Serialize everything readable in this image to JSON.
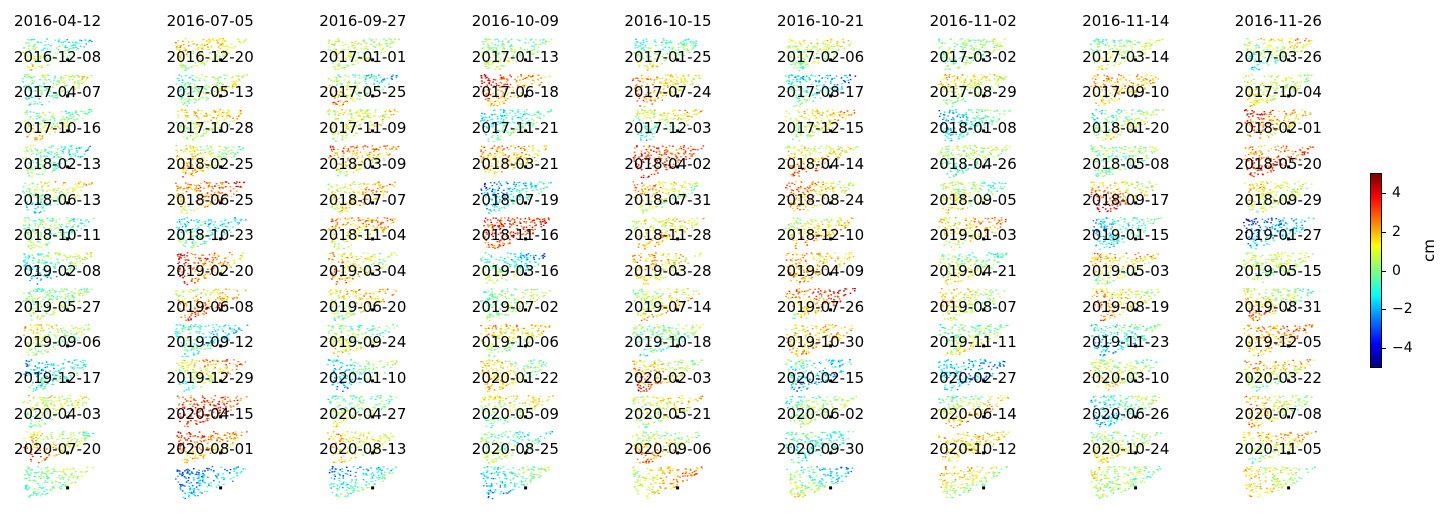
{
  "chart_data": {
    "type": "heatmap",
    "grid_columns": 9,
    "grid_rows": 13,
    "colormap": "jet",
    "colorbar": {
      "label": "cm",
      "range": [
        -5,
        5
      ],
      "ticks": [
        "4",
        "2",
        "0",
        "−2",
        "−4"
      ],
      "tick_values": [
        4,
        2,
        0,
        -2,
        -4
      ]
    },
    "reference_point_color": "#000000",
    "panels": [
      {
        "date": "2016-04-12",
        "mean": 0.0
      },
      {
        "date": "2016-07-05",
        "mean": 0.8
      },
      {
        "date": "2016-09-27",
        "mean": 0.5
      },
      {
        "date": "2016-10-09",
        "mean": 0.3
      },
      {
        "date": "2016-10-15",
        "mean": 0.4
      },
      {
        "date": "2016-10-21",
        "mean": 0.6
      },
      {
        "date": "2016-11-02",
        "mean": 0.2
      },
      {
        "date": "2016-11-14",
        "mean": 0.7
      },
      {
        "date": "2016-11-26",
        "mean": 0.3
      },
      {
        "date": "2016-12-08",
        "mean": 0.1
      },
      {
        "date": "2016-12-20",
        "mean": 0.6
      },
      {
        "date": "2017-01-01",
        "mean": 0.2
      },
      {
        "date": "2017-01-13",
        "mean": 2.0
      },
      {
        "date": "2017-01-25",
        "mean": 1.5
      },
      {
        "date": "2017-02-06",
        "mean": -1.2
      },
      {
        "date": "2017-03-02",
        "mean": 0.4
      },
      {
        "date": "2017-03-14",
        "mean": 1.6
      },
      {
        "date": "2017-03-26",
        "mean": 0.9
      },
      {
        "date": "2017-04-07",
        "mean": 0.7
      },
      {
        "date": "2017-05-13",
        "mean": 0.9
      },
      {
        "date": "2017-05-25",
        "mean": 1.0
      },
      {
        "date": "2017-06-18",
        "mean": -0.5
      },
      {
        "date": "2017-07-24",
        "mean": 0.2
      },
      {
        "date": "2017-08-17",
        "mean": 1.2
      },
      {
        "date": "2017-08-29",
        "mean": -0.6
      },
      {
        "date": "2017-09-10",
        "mean": 0.8
      },
      {
        "date": "2017-10-04",
        "mean": 1.6
      },
      {
        "date": "2017-10-16",
        "mean": -0.8
      },
      {
        "date": "2017-10-28",
        "mean": 1.0
      },
      {
        "date": "2017-11-09",
        "mean": 1.2
      },
      {
        "date": "2017-11-21",
        "mean": 1.6
      },
      {
        "date": "2017-12-03",
        "mean": 3.2
      },
      {
        "date": "2017-12-15",
        "mean": 2.0
      },
      {
        "date": "2018-01-08",
        "mean": -0.2
      },
      {
        "date": "2018-01-20",
        "mean": 0.1
      },
      {
        "date": "2018-02-01",
        "mean": 3.0
      },
      {
        "date": "2018-02-13",
        "mean": 0.3
      },
      {
        "date": "2018-02-25",
        "mean": 2.4
      },
      {
        "date": "2018-03-09",
        "mean": 1.9
      },
      {
        "date": "2018-03-21",
        "mean": -1.0
      },
      {
        "date": "2018-04-02",
        "mean": 0.7
      },
      {
        "date": "2018-04-14",
        "mean": 1.5
      },
      {
        "date": "2018-04-26",
        "mean": 0.3
      },
      {
        "date": "2018-05-08",
        "mean": 2.2
      },
      {
        "date": "2018-05-20",
        "mean": 0.8
      },
      {
        "date": "2018-06-13",
        "mean": -0.3
      },
      {
        "date": "2018-06-25",
        "mean": -0.7
      },
      {
        "date": "2018-07-07",
        "mean": 1.5
      },
      {
        "date": "2018-07-19",
        "mean": 3.3
      },
      {
        "date": "2018-07-31",
        "mean": 1.5
      },
      {
        "date": "2018-08-24",
        "mean": 1.8
      },
      {
        "date": "2018-09-05",
        "mean": 1.6
      },
      {
        "date": "2018-09-17",
        "mean": -0.8
      },
      {
        "date": "2018-09-29",
        "mean": -1.5
      },
      {
        "date": "2018-10-11",
        "mean": -0.5
      },
      {
        "date": "2018-10-23",
        "mean": 2.2
      },
      {
        "date": "2018-11-04",
        "mean": 1.3
      },
      {
        "date": "2018-11-16",
        "mean": -0.6
      },
      {
        "date": "2018-11-28",
        "mean": 1.1
      },
      {
        "date": "2018-12-10",
        "mean": 1.6
      },
      {
        "date": "2019-01-03",
        "mean": 0.6
      },
      {
        "date": "2019-01-15",
        "mean": 1.0
      },
      {
        "date": "2019-01-27",
        "mean": 0.5
      },
      {
        "date": "2019-02-08",
        "mean": 0.3
      },
      {
        "date": "2019-02-20",
        "mean": 2.5
      },
      {
        "date": "2019-03-04",
        "mean": 1.1
      },
      {
        "date": "2019-03-16",
        "mean": 0.5
      },
      {
        "date": "2019-03-28",
        "mean": 1.5
      },
      {
        "date": "2019-04-09",
        "mean": 2.6
      },
      {
        "date": "2019-04-21",
        "mean": 0.4
      },
      {
        "date": "2019-05-03",
        "mean": 1.4
      },
      {
        "date": "2019-05-15",
        "mean": 1.2
      },
      {
        "date": "2019-05-27",
        "mean": 0.2
      },
      {
        "date": "2019-06-08",
        "mean": -1.1
      },
      {
        "date": "2019-06-20",
        "mean": 0.5
      },
      {
        "date": "2019-07-02",
        "mean": 0.8
      },
      {
        "date": "2019-07-14",
        "mean": -0.3
      },
      {
        "date": "2019-07-26",
        "mean": 1.9
      },
      {
        "date": "2019-08-07",
        "mean": 0.6
      },
      {
        "date": "2019-08-19",
        "mean": -1.3
      },
      {
        "date": "2019-08-31",
        "mean": 2.4
      },
      {
        "date": "2019-09-06",
        "mean": -0.9
      },
      {
        "date": "2019-09-12",
        "mean": 1.2
      },
      {
        "date": "2019-09-24",
        "mean": -0.6
      },
      {
        "date": "2019-10-06",
        "mean": 0.9
      },
      {
        "date": "2019-10-18",
        "mean": 1.6
      },
      {
        "date": "2019-10-30",
        "mean": -1.8
      },
      {
        "date": "2019-11-11",
        "mean": -2.0
      },
      {
        "date": "2019-11-23",
        "mean": 0.7
      },
      {
        "date": "2019-12-05",
        "mean": 0.9
      },
      {
        "date": "2019-12-17",
        "mean": 0.4
      },
      {
        "date": "2019-12-29",
        "mean": 3.3
      },
      {
        "date": "2020-01-10",
        "mean": 0.6
      },
      {
        "date": "2020-01-22",
        "mean": 0.7
      },
      {
        "date": "2020-02-03",
        "mean": 1.0
      },
      {
        "date": "2020-02-15",
        "mean": 0.5
      },
      {
        "date": "2020-02-27",
        "mean": 1.5
      },
      {
        "date": "2020-03-10",
        "mean": -0.5
      },
      {
        "date": "2020-03-22",
        "mean": 1.1
      },
      {
        "date": "2020-04-03",
        "mean": 1.3
      },
      {
        "date": "2020-04-15",
        "mean": 1.8
      },
      {
        "date": "2020-04-27",
        "mean": 1.1
      },
      {
        "date": "2020-05-09",
        "mean": -0.2
      },
      {
        "date": "2020-05-21",
        "mean": 1.4
      },
      {
        "date": "2020-06-02",
        "mean": -1.0
      },
      {
        "date": "2020-06-14",
        "mean": 1.5
      },
      {
        "date": "2020-06-26",
        "mean": 0.9
      },
      {
        "date": "2020-07-08",
        "mean": 1.2
      },
      {
        "date": "2020-07-20",
        "mean": 0.0
      },
      {
        "date": "2020-08-01",
        "mean": -1.8
      },
      {
        "date": "2020-08-13",
        "mean": -0.8
      },
      {
        "date": "2020-08-25",
        "mean": -0.9
      },
      {
        "date": "2020-09-06",
        "mean": 1.8
      },
      {
        "date": "2020-09-30",
        "mean": -0.5
      },
      {
        "date": "2020-10-12",
        "mean": 0.3
      },
      {
        "date": "2020-10-24",
        "mean": 0.1
      },
      {
        "date": "2020-11-05",
        "mean": 0.9
      }
    ]
  }
}
